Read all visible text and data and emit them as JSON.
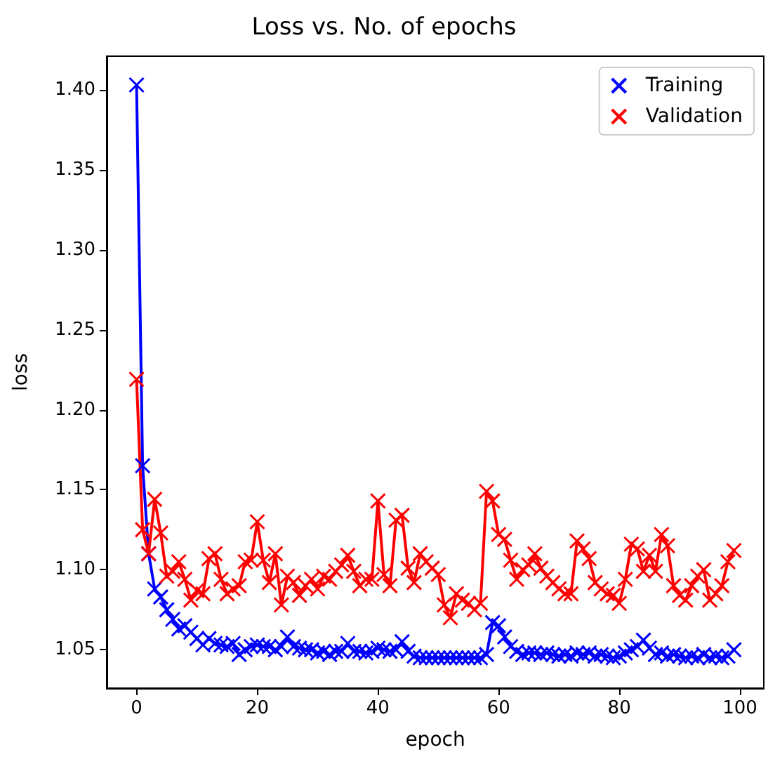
{
  "chart_data": {
    "type": "line",
    "title": "Loss vs. No. of epochs",
    "xlabel": "epoch",
    "ylabel": "loss",
    "x": [
      0,
      1,
      2,
      3,
      4,
      5,
      6,
      7,
      8,
      9,
      10,
      11,
      12,
      13,
      14,
      15,
      16,
      17,
      18,
      19,
      20,
      21,
      22,
      23,
      24,
      25,
      26,
      27,
      28,
      29,
      30,
      31,
      32,
      33,
      34,
      35,
      36,
      37,
      38,
      39,
      40,
      41,
      42,
      43,
      44,
      45,
      46,
      47,
      48,
      49,
      50,
      51,
      52,
      53,
      54,
      55,
      56,
      57,
      58,
      59,
      60,
      61,
      62,
      63,
      64,
      65,
      66,
      67,
      68,
      69,
      70,
      71,
      72,
      73,
      74,
      75,
      76,
      77,
      78,
      79,
      80,
      81,
      82,
      83,
      84,
      85,
      86,
      87,
      88,
      89,
      90,
      91,
      92,
      93,
      94,
      95,
      96,
      97,
      98,
      99
    ],
    "series": [
      {
        "name": "Training",
        "color": "#0000ff",
        "values": [
          1.403,
          1.165,
          1.11,
          1.088,
          1.083,
          1.075,
          1.069,
          1.063,
          1.065,
          1.061,
          1.057,
          1.053,
          1.057,
          1.054,
          1.053,
          1.052,
          1.054,
          1.047,
          1.05,
          1.052,
          1.053,
          1.052,
          1.052,
          1.05,
          1.052,
          1.058,
          1.052,
          1.051,
          1.05,
          1.05,
          1.048,
          1.049,
          1.047,
          1.049,
          1.049,
          1.054,
          1.049,
          1.049,
          1.048,
          1.049,
          1.051,
          1.05,
          1.049,
          1.05,
          1.055,
          1.049,
          1.046,
          1.045,
          1.045,
          1.045,
          1.045,
          1.045,
          1.045,
          1.045,
          1.045,
          1.045,
          1.045,
          1.045,
          1.047,
          1.067,
          1.065,
          1.058,
          1.052,
          1.049,
          1.047,
          1.048,
          1.048,
          1.047,
          1.048,
          1.047,
          1.046,
          1.047,
          1.046,
          1.048,
          1.047,
          1.048,
          1.046,
          1.047,
          1.046,
          1.045,
          1.046,
          1.048,
          1.05,
          1.052,
          1.056,
          1.051,
          1.047,
          1.048,
          1.046,
          1.047,
          1.046,
          1.045,
          1.046,
          1.045,
          1.047,
          1.045,
          1.046,
          1.045,
          1.046,
          1.05
        ]
      },
      {
        "name": "Validation",
        "color": "#ff0000",
        "values": [
          1.219,
          1.125,
          1.11,
          1.144,
          1.123,
          1.096,
          1.099,
          1.105,
          1.094,
          1.081,
          1.087,
          1.085,
          1.107,
          1.11,
          1.094,
          1.085,
          1.088,
          1.09,
          1.105,
          1.106,
          1.13,
          1.106,
          1.092,
          1.11,
          1.078,
          1.096,
          1.092,
          1.084,
          1.09,
          1.094,
          1.088,
          1.096,
          1.094,
          1.099,
          1.103,
          1.109,
          1.099,
          1.09,
          1.094,
          1.094,
          1.143,
          1.097,
          1.09,
          1.131,
          1.134,
          1.101,
          1.092,
          1.11,
          1.105,
          1.101,
          1.097,
          1.078,
          1.07,
          1.085,
          1.081,
          1.079,
          1.075,
          1.079,
          1.149,
          1.143,
          1.122,
          1.119,
          1.106,
          1.094,
          1.1,
          1.103,
          1.11,
          1.101,
          1.096,
          1.092,
          1.088,
          1.085,
          1.085,
          1.118,
          1.113,
          1.107,
          1.092,
          1.088,
          1.085,
          1.084,
          1.079,
          1.094,
          1.116,
          1.113,
          1.099,
          1.109,
          1.099,
          1.122,
          1.115,
          1.09,
          1.084,
          1.081,
          1.09,
          1.096,
          1.1,
          1.081,
          1.085,
          1.09,
          1.105,
          1.112
        ]
      }
    ],
    "xlim": [
      -4.95,
      103.95
    ],
    "xticks": [
      0,
      20,
      40,
      60,
      80,
      100
    ],
    "ylim": [
      1.026,
      1.421
    ],
    "yticks": [
      1.05,
      {
        "value": 1.1,
        "label": "1.10"
      },
      1.15,
      {
        "value": 1.2,
        "label": "1.20"
      },
      1.25,
      {
        "value": 1.3,
        "label": "1.30"
      },
      1.35,
      {
        "value": 1.4,
        "label": "1.40"
      }
    ],
    "legend": "top right",
    "marker": "cross",
    "line_style": "solid"
  }
}
